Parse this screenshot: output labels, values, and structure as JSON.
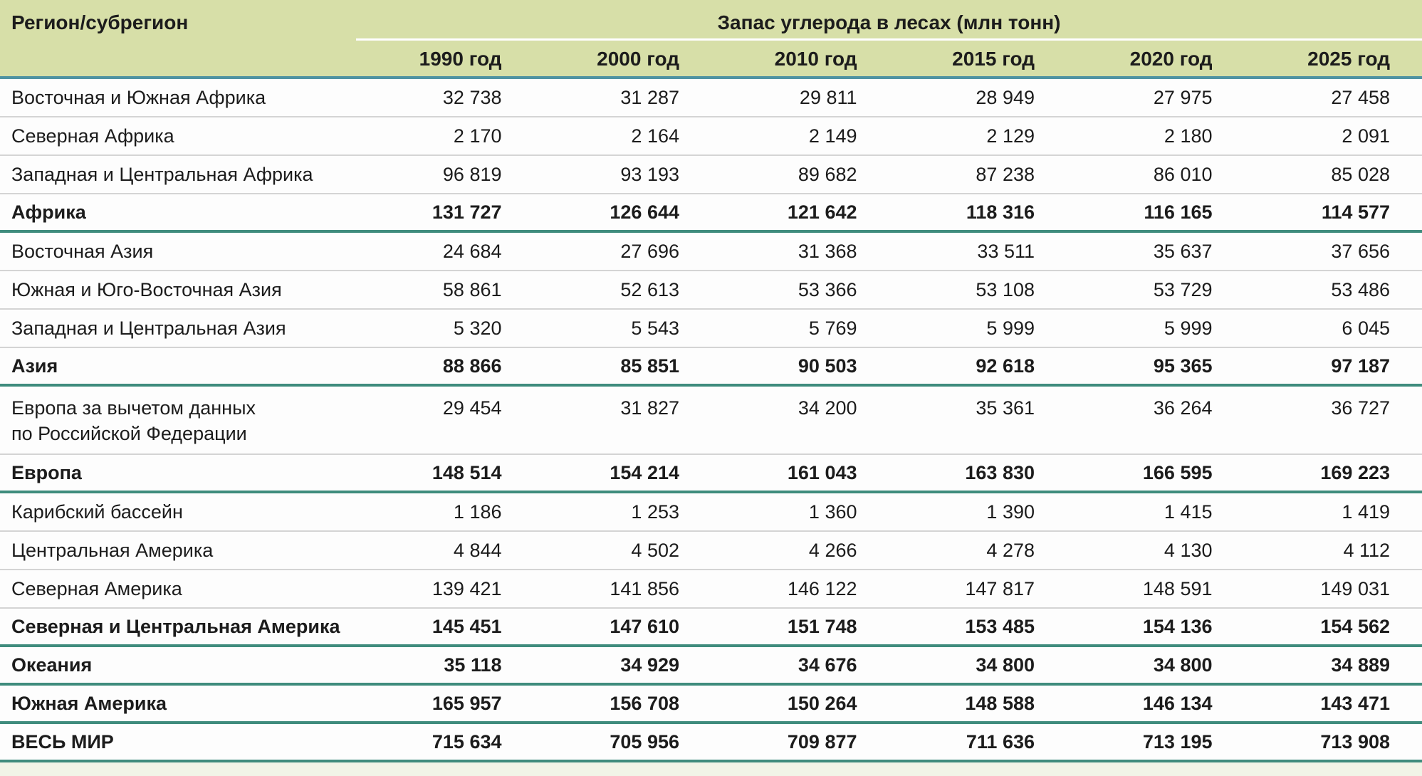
{
  "table": {
    "col1_header": "Регион/субрегион",
    "group_header": "Запас углерода в лесах (млн тонн)",
    "year_headers": [
      "1990 год",
      "2000 год",
      "2010 год",
      "2015 год",
      "2020 год",
      "2025 год"
    ],
    "rows": [
      {
        "label": "Восточная и Южная Африка",
        "bold": false,
        "divider": "gray",
        "values": [
          "32 738",
          "31 287",
          "29 811",
          "28 949",
          "27 975",
          "27 458"
        ]
      },
      {
        "label": "Северная Африка",
        "bold": false,
        "divider": "gray",
        "values": [
          "2 170",
          "2 164",
          "2 149",
          "2 129",
          "2 180",
          "2 091"
        ]
      },
      {
        "label": "Западная и Центральная Африка",
        "bold": false,
        "divider": "gray",
        "values": [
          "96 819",
          "93 193",
          "89 682",
          "87 238",
          "86 010",
          "85 028"
        ]
      },
      {
        "label": "Африка",
        "bold": true,
        "divider": "teal",
        "values": [
          "131 727",
          "126 644",
          "121 642",
          "118 316",
          "116 165",
          "114 577"
        ]
      },
      {
        "label": "Восточная Азия",
        "bold": false,
        "divider": "gray",
        "values": [
          "24 684",
          "27 696",
          "31 368",
          "33 511",
          "35 637",
          "37 656"
        ]
      },
      {
        "label": "Южная и Юго-Восточная Азия",
        "bold": false,
        "divider": "gray",
        "values": [
          "58 861",
          "52 613",
          "53 366",
          "53 108",
          "53 729",
          "53 486"
        ]
      },
      {
        "label": "Западная и Центральная Азия",
        "bold": false,
        "divider": "gray",
        "values": [
          "5 320",
          "5 543",
          "5 769",
          "5 999",
          "5 999",
          "6 045"
        ]
      },
      {
        "label": "Азия",
        "bold": true,
        "divider": "teal",
        "values": [
          "88 866",
          "85 851",
          "90 503",
          "92 618",
          "95 365",
          "97 187"
        ]
      },
      {
        "label": "Европа за вычетом данных",
        "label_line2": "по Российской Федерации",
        "bold": false,
        "divider": "gray",
        "tall": true,
        "values": [
          "29 454",
          "31 827",
          "34 200",
          "35 361",
          "36 264",
          "36 727"
        ]
      },
      {
        "label": "Европа",
        "bold": true,
        "divider": "teal",
        "values": [
          "148 514",
          "154 214",
          "161 043",
          "163 830",
          "166 595",
          "169 223"
        ]
      },
      {
        "label": "Карибский бассейн",
        "bold": false,
        "divider": "gray",
        "values": [
          "1 186",
          "1 253",
          "1 360",
          "1 390",
          "1 415",
          "1 419"
        ]
      },
      {
        "label": "Центральная Америка",
        "bold": false,
        "divider": "gray",
        "values": [
          "4 844",
          "4 502",
          "4 266",
          "4 278",
          "4 130",
          "4 112"
        ]
      },
      {
        "label": "Северная Америка",
        "bold": false,
        "divider": "gray",
        "values": [
          "139 421",
          "141 856",
          "146 122",
          "147 817",
          "148 591",
          "149 031"
        ]
      },
      {
        "label": "Северная и Центральная Америка",
        "bold": true,
        "divider": "teal",
        "values": [
          "145 451",
          "147 610",
          "151 748",
          "153 485",
          "154 136",
          "154 562"
        ]
      },
      {
        "label": "Океания",
        "bold": true,
        "divider": "teal",
        "values": [
          "35 118",
          "34 929",
          "34 676",
          "34 800",
          "34 800",
          "34 889"
        ]
      },
      {
        "label": "Южная Америка",
        "bold": true,
        "divider": "teal",
        "values": [
          "165 957",
          "156 708",
          "150 264",
          "148 588",
          "146 134",
          "143 471"
        ]
      },
      {
        "label": "ВЕСЬ МИР",
        "bold": true,
        "divider": "teal",
        "values": [
          "715 634",
          "705 956",
          "709 877",
          "711 636",
          "713 195",
          "713 908"
        ]
      }
    ]
  },
  "colors": {
    "header_bg": "#d7dfa8",
    "header_rule_teal_blue": "#4f93a2",
    "section_rule_teal": "#3f8c7d",
    "row_rule_gray": "#d4d4d4",
    "white_rule": "#ffffff",
    "bottom_strip": "#f1f4e7",
    "text": "#1c1c1c"
  },
  "chart_data": {
    "type": "table",
    "title": "Запас углерода в лесах (млн тонн)",
    "columns": [
      "Регион/субрегион",
      "1990 год",
      "2000 год",
      "2010 год",
      "2015 год",
      "2020 год",
      "2025 год"
    ],
    "rows": [
      {
        "region": "Восточная и Южная Африка",
        "total_row": false,
        "values": [
          32738,
          31287,
          29811,
          28949,
          27975,
          27458
        ]
      },
      {
        "region": "Северная Африка",
        "total_row": false,
        "values": [
          2170,
          2164,
          2149,
          2129,
          2180,
          2091
        ]
      },
      {
        "region": "Западная и Центральная Африка",
        "total_row": false,
        "values": [
          96819,
          93193,
          89682,
          87238,
          86010,
          85028
        ]
      },
      {
        "region": "Африка",
        "total_row": true,
        "values": [
          131727,
          126644,
          121642,
          118316,
          116165,
          114577
        ]
      },
      {
        "region": "Восточная Азия",
        "total_row": false,
        "values": [
          24684,
          27696,
          31368,
          33511,
          35637,
          37656
        ]
      },
      {
        "region": "Южная и Юго-Восточная Азия",
        "total_row": false,
        "values": [
          58861,
          52613,
          53366,
          53108,
          53729,
          53486
        ]
      },
      {
        "region": "Западная и Центральная Азия",
        "total_row": false,
        "values": [
          5320,
          5543,
          5769,
          5999,
          5999,
          6045
        ]
      },
      {
        "region": "Азия",
        "total_row": true,
        "values": [
          88866,
          85851,
          90503,
          92618,
          95365,
          97187
        ]
      },
      {
        "region": "Европа за вычетом данных по Российской Федерации",
        "total_row": false,
        "values": [
          29454,
          31827,
          34200,
          35361,
          36264,
          36727
        ]
      },
      {
        "region": "Европа",
        "total_row": true,
        "values": [
          148514,
          154214,
          161043,
          163830,
          166595,
          169223
        ]
      },
      {
        "region": "Карибский бассейн",
        "total_row": false,
        "values": [
          1186,
          1253,
          1360,
          1390,
          1415,
          1419
        ]
      },
      {
        "region": "Центральная Америка",
        "total_row": false,
        "values": [
          4844,
          4502,
          4266,
          4278,
          4130,
          4112
        ]
      },
      {
        "region": "Северная Америка",
        "total_row": false,
        "values": [
          139421,
          141856,
          146122,
          147817,
          148591,
          149031
        ]
      },
      {
        "region": "Северная и Центральная Америка",
        "total_row": true,
        "values": [
          145451,
          147610,
          151748,
          153485,
          154136,
          154562
        ]
      },
      {
        "region": "Океания",
        "total_row": true,
        "values": [
          35118,
          34929,
          34676,
          34800,
          34800,
          34889
        ]
      },
      {
        "region": "Южная Америка",
        "total_row": true,
        "values": [
          165957,
          156708,
          150264,
          148588,
          146134,
          143471
        ]
      },
      {
        "region": "ВЕСЬ МИР",
        "total_row": true,
        "values": [
          715634,
          705956,
          709877,
          711636,
          713195,
          713908
        ]
      }
    ]
  }
}
